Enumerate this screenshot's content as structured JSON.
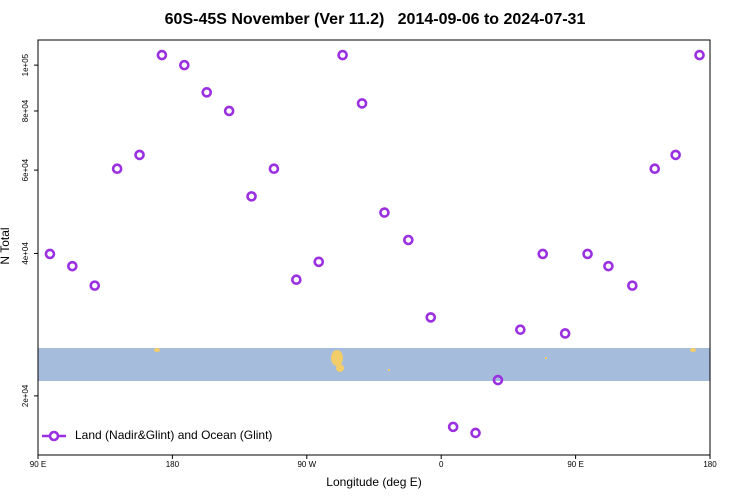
{
  "chart_data": {
    "type": "scatter",
    "title": "60S-45S November (Ver 11.2)   2014-09-06 to 2024-07-31",
    "xlabel": "Longitude (deg E)",
    "ylabel": "N Total",
    "x": [
      98,
      113,
      128,
      143,
      158,
      173,
      188,
      203,
      218,
      233,
      248,
      263,
      278,
      294,
      307,
      322,
      338,
      353,
      368,
      383,
      398,
      413,
      428,
      443,
      458,
      472,
      488,
      503,
      517,
      533
    ],
    "series": [
      {
        "name": "Land (Nadir&Glint) and Ocean (Glint)",
        "color": "#9b30e0",
        "values": [
          39900,
          37600,
          34200,
          60400,
          64600,
          105000,
          100000,
          87600,
          80000,
          52800,
          60400,
          35200,
          38400,
          105000,
          83000,
          48800,
          42700,
          29300,
          17200,
          16700,
          21600,
          27600,
          39900,
          27100,
          39900,
          37600,
          34200,
          60400,
          64600,
          105000
        ]
      }
    ],
    "xlim": [
      90,
      540
    ],
    "xticks": [
      {
        "value": 90,
        "label": "90 E"
      },
      180,
      {
        "value": 270,
        "label": "90 W"
      },
      {
        "value": 360,
        "label": "0"
      },
      {
        "value": 450,
        "label": "90 E"
      },
      {
        "value": 540,
        "label": "180"
      }
    ],
    "ylim": [
      15000,
      113000
    ],
    "ylog": true,
    "yticks": [
      {
        "value": 20000,
        "label": "2e+04"
      },
      {
        "value": 40000,
        "label": "4e+04"
      },
      {
        "value": 60000,
        "label": "6e+04"
      },
      {
        "value": 80000,
        "label": "8e+04"
      },
      {
        "value": 100000,
        "label": "1e+05"
      }
    ],
    "legend": "lower left"
  }
}
